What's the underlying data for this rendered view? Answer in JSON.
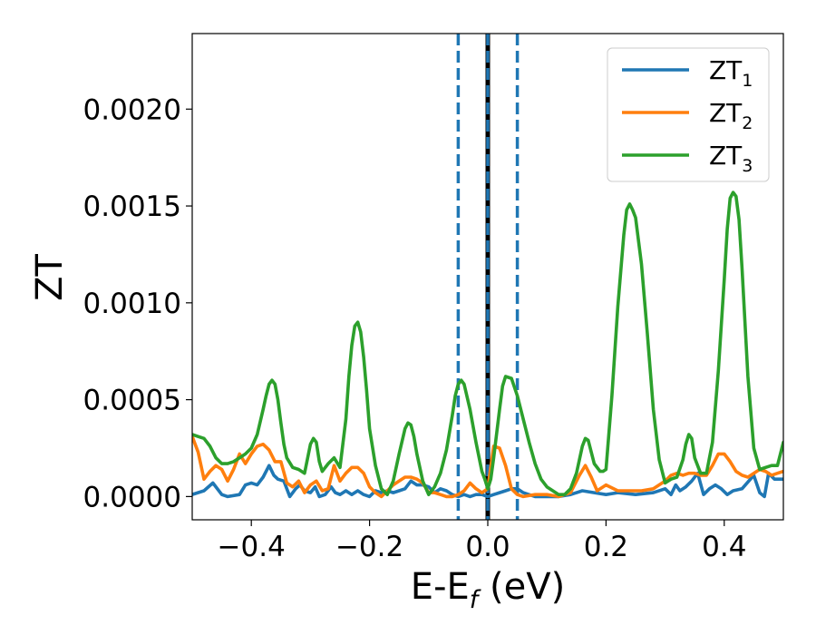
{
  "chart_data": {
    "type": "line",
    "xlabel": {
      "main": "E-E",
      "sub": "f",
      "suffix": " (eV)"
    },
    "ylabel": "ZT",
    "xlim": [
      -0.5,
      0.5
    ],
    "ylim": [
      -0.00012,
      0.00239
    ],
    "xticks": [
      -0.4,
      -0.2,
      0.0,
      0.2,
      0.4
    ],
    "xtick_labels": [
      "−0.4",
      "−0.2",
      "0.0",
      "0.2",
      "0.4"
    ],
    "yticks": [
      0.0,
      0.0005,
      0.001,
      0.0015,
      0.002
    ],
    "ytick_labels": [
      "0.0000",
      "0.0005",
      "0.0010",
      "0.0015",
      "0.0020"
    ],
    "grid": false,
    "legend_position": "top-right",
    "vlines": [
      {
        "x": -0.05,
        "color": "#1f77b4",
        "style": "dashed"
      },
      {
        "x": 0.0,
        "color": "#000000",
        "style": "solid"
      },
      {
        "x": 0.0,
        "color": "#1f77b4",
        "style": "dashed"
      },
      {
        "x": 0.05,
        "color": "#1f77b4",
        "style": "dashed"
      }
    ],
    "series": [
      {
        "name": "ZT",
        "name_sub": "1",
        "color": "#1f77b4",
        "x": [
          -0.5,
          -0.48,
          -0.465,
          -0.45,
          -0.44,
          -0.42,
          -0.41,
          -0.4,
          -0.39,
          -0.38,
          -0.37,
          -0.362,
          -0.355,
          -0.345,
          -0.335,
          -0.325,
          -0.318,
          -0.31,
          -0.3,
          -0.292,
          -0.285,
          -0.275,
          -0.265,
          -0.258,
          -0.25,
          -0.24,
          -0.23,
          -0.22,
          -0.21,
          -0.2,
          -0.19,
          -0.18,
          -0.17,
          -0.16,
          -0.15,
          -0.14,
          -0.13,
          -0.12,
          -0.11,
          -0.1,
          -0.09,
          -0.08,
          -0.07,
          -0.06,
          -0.05,
          -0.04,
          -0.03,
          -0.02,
          -0.01,
          0.0,
          0.01,
          0.02,
          0.03,
          0.04,
          0.05,
          0.06,
          0.08,
          0.1,
          0.12,
          0.14,
          0.16,
          0.18,
          0.2,
          0.22,
          0.25,
          0.28,
          0.3,
          0.31,
          0.318,
          0.325,
          0.335,
          0.345,
          0.355,
          0.365,
          0.375,
          0.385,
          0.395,
          0.405,
          0.415,
          0.43,
          0.45,
          0.46,
          0.468,
          0.475,
          0.485,
          0.5
        ],
        "y": [
          1e-05,
          3e-05,
          7e-05,
          1e-05,
          0.0,
          1e-05,
          6e-05,
          7e-05,
          6e-05,
          0.0001,
          0.00016,
          0.00011,
          9e-05,
          8e-05,
          0.0,
          4e-05,
          6e-05,
          3e-05,
          2e-05,
          5e-05,
          0.0,
          1e-05,
          5e-05,
          2e-05,
          1e-05,
          3e-05,
          1e-05,
          3e-05,
          1e-05,
          0.0,
          3e-05,
          2e-05,
          3e-05,
          2e-05,
          3e-05,
          4e-05,
          8e-05,
          6e-05,
          6e-05,
          5e-05,
          2e-05,
          4e-05,
          3e-05,
          1e-05,
          0.0,
          1e-05,
          0.0,
          1e-05,
          1e-05,
          0.0,
          1e-05,
          2e-05,
          3e-05,
          4e-05,
          4e-05,
          2e-05,
          0.0,
          0.0,
          0.0,
          1e-05,
          3e-05,
          2e-05,
          1e-05,
          2e-05,
          1e-05,
          2e-05,
          4e-05,
          1e-05,
          6e-05,
          3e-05,
          5e-05,
          8e-05,
          0.00012,
          1e-05,
          4e-05,
          6e-05,
          4e-05,
          1e-05,
          3e-05,
          4e-05,
          0.00011,
          2e-05,
          0.0,
          0.00012,
          9e-05,
          9e-05
        ]
      },
      {
        "name": "ZT",
        "name_sub": "2",
        "color": "#ff7f0e",
        "x": [
          -0.5,
          -0.49,
          -0.48,
          -0.47,
          -0.46,
          -0.45,
          -0.44,
          -0.43,
          -0.42,
          -0.41,
          -0.4,
          -0.39,
          -0.38,
          -0.37,
          -0.36,
          -0.35,
          -0.34,
          -0.33,
          -0.32,
          -0.31,
          -0.3,
          -0.29,
          -0.28,
          -0.27,
          -0.26,
          -0.25,
          -0.24,
          -0.23,
          -0.22,
          -0.21,
          -0.2,
          -0.19,
          -0.18,
          -0.17,
          -0.16,
          -0.15,
          -0.14,
          -0.13,
          -0.12,
          -0.11,
          -0.1,
          -0.09,
          -0.08,
          -0.07,
          -0.06,
          -0.05,
          -0.04,
          -0.03,
          -0.02,
          -0.01,
          0.0,
          0.01,
          0.02,
          0.03,
          0.04,
          0.05,
          0.06,
          0.08,
          0.1,
          0.12,
          0.14,
          0.155,
          0.165,
          0.175,
          0.185,
          0.2,
          0.22,
          0.24,
          0.26,
          0.28,
          0.3,
          0.31,
          0.32,
          0.33,
          0.34,
          0.35,
          0.36,
          0.37,
          0.38,
          0.39,
          0.4,
          0.41,
          0.42,
          0.43,
          0.44,
          0.45,
          0.46,
          0.47,
          0.48,
          0.49,
          0.5
        ],
        "y": [
          0.00031,
          0.00023,
          9e-05,
          0.00013,
          0.00016,
          0.00014,
          8e-05,
          0.00014,
          0.00022,
          0.00017,
          0.00022,
          0.00026,
          0.00027,
          0.00024,
          0.00018,
          0.00018,
          7e-05,
          5e-05,
          8e-05,
          2e-05,
          6e-05,
          8e-05,
          3e-05,
          4e-05,
          0.00016,
          8e-05,
          0.00012,
          0.00015,
          0.00015,
          0.00012,
          5e-05,
          2e-05,
          0.0,
          3e-05,
          6e-05,
          8e-05,
          0.0001,
          0.0001,
          9e-05,
          7e-05,
          2e-05,
          2e-05,
          1e-05,
          0.0,
          0.0,
          1e-05,
          3e-05,
          7e-05,
          4e-05,
          2e-05,
          4e-05,
          0.00026,
          0.00025,
          0.00016,
          4e-05,
          1e-05,
          0.0,
          1e-05,
          1e-05,
          0.0,
          2e-05,
          0.00011,
          0.00016,
          0.0001,
          3e-05,
          6e-05,
          3e-05,
          3e-05,
          3e-05,
          4e-05,
          8e-05,
          0.00011,
          0.00012,
          0.00011,
          0.00012,
          0.00012,
          0.00011,
          0.00011,
          0.00016,
          0.00022,
          0.00022,
          0.00018,
          0.00013,
          0.00011,
          0.0001,
          0.00012,
          0.00014,
          0.00013,
          0.00011,
          0.00012,
          0.00013
        ]
      },
      {
        "name": "ZT",
        "name_sub": "3",
        "color": "#2ca02c",
        "x": [
          -0.5,
          -0.49,
          -0.48,
          -0.47,
          -0.46,
          -0.45,
          -0.44,
          -0.43,
          -0.42,
          -0.41,
          -0.4,
          -0.39,
          -0.38,
          -0.375,
          -0.37,
          -0.365,
          -0.36,
          -0.355,
          -0.35,
          -0.345,
          -0.34,
          -0.33,
          -0.32,
          -0.31,
          -0.3,
          -0.295,
          -0.29,
          -0.285,
          -0.28,
          -0.27,
          -0.26,
          -0.25,
          -0.24,
          -0.235,
          -0.23,
          -0.225,
          -0.22,
          -0.215,
          -0.21,
          -0.205,
          -0.2,
          -0.19,
          -0.18,
          -0.17,
          -0.16,
          -0.15,
          -0.14,
          -0.135,
          -0.13,
          -0.125,
          -0.12,
          -0.11,
          -0.1,
          -0.09,
          -0.08,
          -0.07,
          -0.06,
          -0.055,
          -0.05,
          -0.045,
          -0.04,
          -0.03,
          -0.02,
          -0.01,
          -0.005,
          0.0,
          0.005,
          0.01,
          0.02,
          0.025,
          0.03,
          0.04,
          0.05,
          0.06,
          0.07,
          0.08,
          0.09,
          0.1,
          0.11,
          0.12,
          0.13,
          0.14,
          0.15,
          0.16,
          0.165,
          0.17,
          0.18,
          0.19,
          0.195,
          0.2,
          0.21,
          0.22,
          0.23,
          0.235,
          0.24,
          0.245,
          0.25,
          0.26,
          0.27,
          0.28,
          0.29,
          0.3,
          0.31,
          0.32,
          0.33,
          0.335,
          0.34,
          0.345,
          0.35,
          0.36,
          0.37,
          0.38,
          0.39,
          0.4,
          0.405,
          0.41,
          0.415,
          0.42,
          0.425,
          0.43,
          0.44,
          0.45,
          0.46,
          0.47,
          0.48,
          0.49,
          0.5
        ],
        "y": [
          0.00032,
          0.00031,
          0.0003,
          0.00026,
          0.0002,
          0.00017,
          0.00017,
          0.00018,
          0.0002,
          0.00022,
          0.00025,
          0.00032,
          0.00045,
          0.00052,
          0.00058,
          0.0006,
          0.00058,
          0.0005,
          0.00038,
          0.00027,
          0.0002,
          0.00015,
          0.00014,
          0.00012,
          0.00027,
          0.0003,
          0.00028,
          0.00018,
          0.00013,
          0.00017,
          0.0002,
          0.00015,
          0.0004,
          0.00062,
          0.00078,
          0.00088,
          0.0009,
          0.00085,
          0.00072,
          0.00055,
          0.00035,
          0.00016,
          4e-05,
          1e-05,
          8e-05,
          0.00022,
          0.00035,
          0.00038,
          0.00037,
          0.00031,
          0.00022,
          8e-05,
          1e-05,
          5e-05,
          0.00012,
          0.00024,
          0.00042,
          0.00052,
          0.00058,
          0.0006,
          0.00058,
          0.00045,
          0.00028,
          0.00013,
          9e-05,
          4e-05,
          9e-05,
          0.0002,
          0.00045,
          0.00057,
          0.00062,
          0.00061,
          0.00052,
          0.0004,
          0.00028,
          0.00017,
          9e-05,
          5e-05,
          3e-05,
          1e-05,
          1e-05,
          4e-05,
          0.00012,
          0.00026,
          0.0003,
          0.00029,
          0.00017,
          0.00013,
          0.00013,
          0.00014,
          0.00052,
          0.00098,
          0.00135,
          0.00148,
          0.00151,
          0.00148,
          0.00144,
          0.0012,
          0.00084,
          0.00045,
          0.00019,
          7e-05,
          9e-05,
          0.0001,
          0.00019,
          0.00027,
          0.00032,
          0.0003,
          0.0002,
          0.00012,
          0.00012,
          0.00028,
          0.00065,
          0.00112,
          0.00138,
          0.00154,
          0.00157,
          0.00155,
          0.00143,
          0.00118,
          0.00062,
          0.00025,
          0.00014,
          0.00015,
          0.00016,
          0.00016,
          0.00028
        ]
      }
    ]
  }
}
